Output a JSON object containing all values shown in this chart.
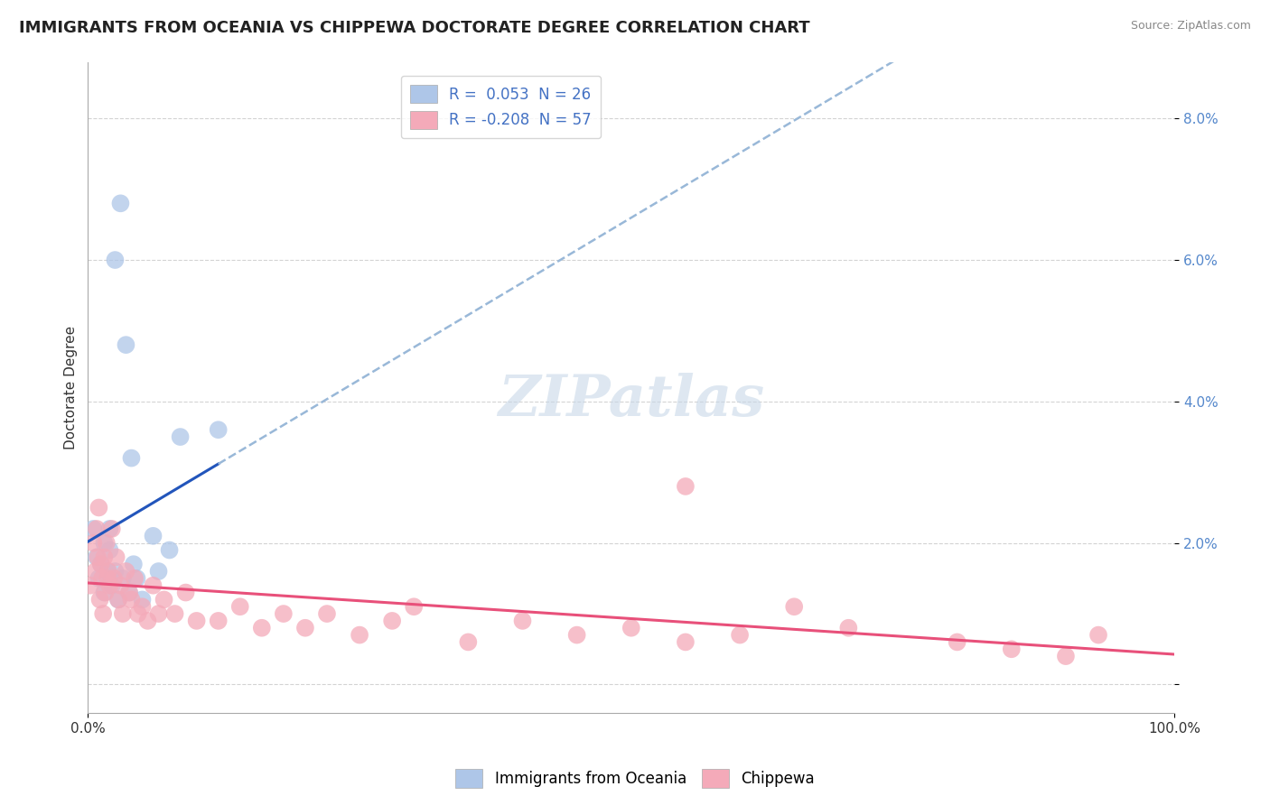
{
  "title": "IMMIGRANTS FROM OCEANIA VS CHIPPEWA DOCTORATE DEGREE CORRELATION CHART",
  "source": "Source: ZipAtlas.com",
  "ylabel": "Doctorate Degree",
  "xlim": [
    0.0,
    1.0
  ],
  "ylim": [
    -0.004,
    0.088
  ],
  "series1_color": "#aec6e8",
  "series2_color": "#f4aab9",
  "line1_color": "#2255bb",
  "line2_color": "#e8507a",
  "dash_color": "#99b8d8",
  "background_color": "#ffffff",
  "grid_color": "#c8c8c8",
  "watermark": "ZIPatlas",
  "watermark_color": "#c8d8e8",
  "watermark_alpha": 0.6,
  "oceania_x": [
    0.005,
    0.008,
    0.01,
    0.012,
    0.015,
    0.015,
    0.018,
    0.02,
    0.02,
    0.022,
    0.025,
    0.025,
    0.028,
    0.03,
    0.032,
    0.035,
    0.038,
    0.04,
    0.042,
    0.045,
    0.05,
    0.06,
    0.065,
    0.075,
    0.085,
    0.12
  ],
  "oceania_y": [
    0.022,
    0.018,
    0.015,
    0.017,
    0.013,
    0.02,
    0.016,
    0.019,
    0.022,
    0.014,
    0.06,
    0.016,
    0.012,
    0.068,
    0.015,
    0.048,
    0.013,
    0.032,
    0.017,
    0.015,
    0.012,
    0.021,
    0.016,
    0.019,
    0.035,
    0.036
  ],
  "chippewa_x": [
    0.002,
    0.005,
    0.007,
    0.008,
    0.009,
    0.01,
    0.011,
    0.012,
    0.013,
    0.014,
    0.015,
    0.016,
    0.017,
    0.018,
    0.019,
    0.02,
    0.022,
    0.024,
    0.026,
    0.028,
    0.03,
    0.032,
    0.035,
    0.038,
    0.04,
    0.043,
    0.046,
    0.05,
    0.055,
    0.06,
    0.065,
    0.07,
    0.08,
    0.09,
    0.1,
    0.12,
    0.14,
    0.16,
    0.18,
    0.2,
    0.22,
    0.25,
    0.28,
    0.3,
    0.35,
    0.4,
    0.45,
    0.5,
    0.55,
    0.6,
    0.65,
    0.7,
    0.8,
    0.85,
    0.9,
    0.93,
    0.55
  ],
  "chippewa_y": [
    0.014,
    0.02,
    0.016,
    0.022,
    0.018,
    0.025,
    0.012,
    0.017,
    0.015,
    0.01,
    0.018,
    0.013,
    0.02,
    0.015,
    0.016,
    0.014,
    0.022,
    0.015,
    0.018,
    0.012,
    0.014,
    0.01,
    0.016,
    0.013,
    0.012,
    0.015,
    0.01,
    0.011,
    0.009,
    0.014,
    0.01,
    0.012,
    0.01,
    0.013,
    0.009,
    0.009,
    0.011,
    0.008,
    0.01,
    0.008,
    0.01,
    0.007,
    0.009,
    0.011,
    0.006,
    0.009,
    0.007,
    0.008,
    0.006,
    0.007,
    0.011,
    0.008,
    0.006,
    0.005,
    0.004,
    0.007,
    0.028
  ],
  "title_fontsize": 13,
  "axis_label_fontsize": 11,
  "tick_fontsize": 11,
  "legend_fontsize": 12
}
